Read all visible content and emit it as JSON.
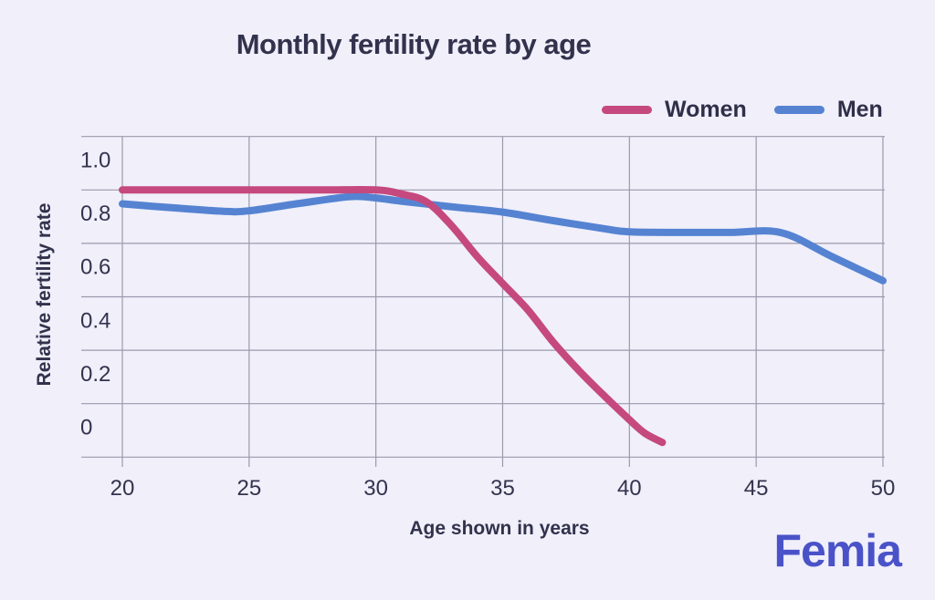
{
  "page": {
    "background_color": "#f0effa",
    "text_color": "#32324d"
  },
  "header": {
    "title": "Monthly fertility rate by age"
  },
  "legend": {
    "position": "top-right",
    "items": [
      {
        "label": "Women",
        "color": "#c5497e"
      },
      {
        "label": "Men",
        "color": "#5583d2"
      }
    ]
  },
  "branding": {
    "logo_text": "Femia",
    "logo_color": "#4a52c8"
  },
  "chart_data": {
    "type": "line",
    "title": "Monthly fertility rate by age",
    "xlabel": "Age shown in years",
    "ylabel": "Relative fertility rate",
    "xlim": [
      18.4,
      50.1
    ],
    "ylim": [
      -0.1,
      1.1
    ],
    "grid": true,
    "x_ticks": [
      {
        "label": "20",
        "value": 20
      },
      {
        "label": "25",
        "value": 25
      },
      {
        "label": "30",
        "value": 30
      },
      {
        "label": "35",
        "value": 35
      },
      {
        "label": "40",
        "value": 40
      },
      {
        "label": "45",
        "value": 45
      },
      {
        "label": "50",
        "value": 50
      }
    ],
    "y_ticks": [
      {
        "label": "1.0",
        "value": 1.0
      },
      {
        "label": "0.8",
        "value": 0.8
      },
      {
        "label": "0.6",
        "value": 0.6
      },
      {
        "label": "0.4",
        "value": 0.4
      },
      {
        "label": "0.2",
        "value": 0.2
      },
      {
        "label": "0",
        "value": 0.0
      }
    ],
    "y_gridline_values": [
      1.1,
      0.9,
      0.7,
      0.5,
      0.3,
      0.1,
      -0.1
    ],
    "colors": {
      "grid": "#9b9aab",
      "axis_text": "#33334e"
    },
    "series": [
      {
        "name": "Men",
        "color": "#5583d2",
        "points": [
          [
            20,
            0.848
          ],
          [
            22,
            0.833
          ],
          [
            24,
            0.82
          ],
          [
            25,
            0.822
          ],
          [
            27,
            0.85
          ],
          [
            29,
            0.875
          ],
          [
            30,
            0.87
          ],
          [
            31,
            0.858
          ],
          [
            33,
            0.837
          ],
          [
            35,
            0.817
          ],
          [
            37,
            0.785
          ],
          [
            39,
            0.755
          ],
          [
            40,
            0.743
          ],
          [
            42,
            0.741
          ],
          [
            44,
            0.741
          ],
          [
            46,
            0.74
          ],
          [
            48,
            0.65
          ],
          [
            50,
            0.56
          ]
        ]
      },
      {
        "name": "Women",
        "color": "#c5497e",
        "points": [
          [
            20,
            0.9
          ],
          [
            22,
            0.9
          ],
          [
            24,
            0.9
          ],
          [
            26,
            0.9
          ],
          [
            28,
            0.9
          ],
          [
            30,
            0.9
          ],
          [
            31,
            0.885
          ],
          [
            32,
            0.855
          ],
          [
            33,
            0.765
          ],
          [
            34,
            0.65
          ],
          [
            35,
            0.55
          ],
          [
            36,
            0.45
          ],
          [
            37,
            0.33
          ],
          [
            38,
            0.225
          ],
          [
            39,
            0.13
          ],
          [
            40,
            0.04
          ],
          [
            40.6,
            -0.01
          ],
          [
            41.3,
            -0.045
          ]
        ]
      }
    ]
  }
}
